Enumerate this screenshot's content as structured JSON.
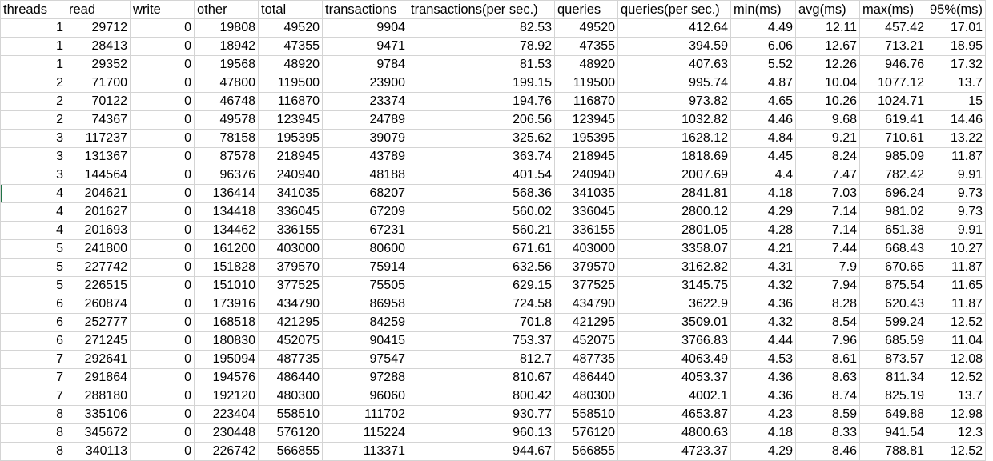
{
  "sheet": {
    "headers": [
      "threads",
      "read",
      "write",
      "other",
      "total",
      "transactions",
      "transactions(per sec.)",
      "queries",
      "queries(per sec.)",
      "min(ms)",
      "avg(ms)",
      "max(ms)",
      "95%(ms)"
    ],
    "rows": [
      [
        "1",
        "29712",
        "0",
        "19808",
        "49520",
        "9904",
        "82.53",
        "49520",
        "412.64",
        "4.49",
        "12.11",
        "457.42",
        "17.01"
      ],
      [
        "1",
        "28413",
        "0",
        "18942",
        "47355",
        "9471",
        "78.92",
        "47355",
        "394.59",
        "6.06",
        "12.67",
        "713.21",
        "18.95"
      ],
      [
        "1",
        "29352",
        "0",
        "19568",
        "48920",
        "9784",
        "81.53",
        "48920",
        "407.63",
        "5.52",
        "12.26",
        "946.76",
        "17.32"
      ],
      [
        "2",
        "71700",
        "0",
        "47800",
        "119500",
        "23900",
        "199.15",
        "119500",
        "995.74",
        "4.87",
        "10.04",
        "1077.12",
        "13.7"
      ],
      [
        "2",
        "70122",
        "0",
        "46748",
        "116870",
        "23374",
        "194.76",
        "116870",
        "973.82",
        "4.65",
        "10.26",
        "1024.71",
        "15"
      ],
      [
        "2",
        "74367",
        "0",
        "49578",
        "123945",
        "24789",
        "206.56",
        "123945",
        "1032.82",
        "4.46",
        "9.68",
        "619.41",
        "14.46"
      ],
      [
        "3",
        "117237",
        "0",
        "78158",
        "195395",
        "39079",
        "325.62",
        "195395",
        "1628.12",
        "4.84",
        "9.21",
        "710.61",
        "13.22"
      ],
      [
        "3",
        "131367",
        "0",
        "87578",
        "218945",
        "43789",
        "363.74",
        "218945",
        "1818.69",
        "4.45",
        "8.24",
        "985.09",
        "11.87"
      ],
      [
        "3",
        "144564",
        "0",
        "96376",
        "240940",
        "48188",
        "401.54",
        "240940",
        "2007.69",
        "4.4",
        "7.47",
        "782.42",
        "9.91"
      ],
      [
        "4",
        "204621",
        "0",
        "136414",
        "341035",
        "68207",
        "568.36",
        "341035",
        "2841.81",
        "4.18",
        "7.03",
        "696.24",
        "9.73"
      ],
      [
        "4",
        "201627",
        "0",
        "134418",
        "336045",
        "67209",
        "560.02",
        "336045",
        "2800.12",
        "4.29",
        "7.14",
        "981.02",
        "9.73"
      ],
      [
        "4",
        "201693",
        "0",
        "134462",
        "336155",
        "67231",
        "560.21",
        "336155",
        "2801.05",
        "4.28",
        "7.14",
        "651.38",
        "9.91"
      ],
      [
        "5",
        "241800",
        "0",
        "161200",
        "403000",
        "80600",
        "671.61",
        "403000",
        "3358.07",
        "4.21",
        "7.44",
        "668.43",
        "10.27"
      ],
      [
        "5",
        "227742",
        "0",
        "151828",
        "379570",
        "75914",
        "632.56",
        "379570",
        "3162.82",
        "4.31",
        "7.9",
        "670.65",
        "11.87"
      ],
      [
        "5",
        "226515",
        "0",
        "151010",
        "377525",
        "75505",
        "629.15",
        "377525",
        "3145.75",
        "4.32",
        "7.94",
        "875.54",
        "11.65"
      ],
      [
        "6",
        "260874",
        "0",
        "173916",
        "434790",
        "86958",
        "724.58",
        "434790",
        "3622.9",
        "4.36",
        "8.28",
        "620.43",
        "11.87"
      ],
      [
        "6",
        "252777",
        "0",
        "168518",
        "421295",
        "84259",
        "701.8",
        "421295",
        "3509.01",
        "4.32",
        "8.54",
        "599.24",
        "12.52"
      ],
      [
        "6",
        "271245",
        "0",
        "180830",
        "452075",
        "90415",
        "753.37",
        "452075",
        "3766.83",
        "4.44",
        "7.96",
        "685.59",
        "11.04"
      ],
      [
        "7",
        "292641",
        "0",
        "195094",
        "487735",
        "97547",
        "812.7",
        "487735",
        "4063.49",
        "4.53",
        "8.61",
        "873.57",
        "12.08"
      ],
      [
        "7",
        "291864",
        "0",
        "194576",
        "486440",
        "97288",
        "810.67",
        "486440",
        "4053.37",
        "4.36",
        "8.63",
        "811.34",
        "12.52"
      ],
      [
        "7",
        "288180",
        "0",
        "192120",
        "480300",
        "96060",
        "800.42",
        "480300",
        "4002.1",
        "4.36",
        "8.74",
        "825.19",
        "13.7"
      ],
      [
        "8",
        "335106",
        "0",
        "223404",
        "558510",
        "111702",
        "930.77",
        "558510",
        "4653.87",
        "4.23",
        "8.59",
        "649.88",
        "12.98"
      ],
      [
        "8",
        "345672",
        "0",
        "230448",
        "576120",
        "115224",
        "960.13",
        "576120",
        "4800.63",
        "4.18",
        "8.33",
        "941.54",
        "12.3"
      ],
      [
        "8",
        "340113",
        "0",
        "226742",
        "566855",
        "113371",
        "944.67",
        "566855",
        "4723.37",
        "4.29",
        "8.46",
        "788.81",
        "12.52"
      ]
    ]
  }
}
